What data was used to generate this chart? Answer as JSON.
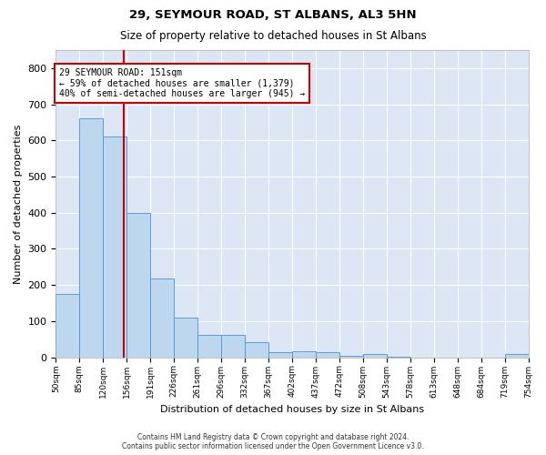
{
  "title1": "29, SEYMOUR ROAD, ST ALBANS, AL3 5HN",
  "title2": "Size of property relative to detached houses in St Albans",
  "xlabel": "Distribution of detached houses by size in St Albans",
  "ylabel": "Number of detached properties",
  "bar_values": [
    175,
    660,
    610,
    400,
    218,
    110,
    63,
    63,
    42,
    15,
    16,
    13,
    5,
    8,
    1,
    0,
    0,
    0,
    0,
    8
  ],
  "bin_labels": [
    "50sqm",
    "85sqm",
    "120sqm",
    "156sqm",
    "191sqm",
    "226sqm",
    "261sqm",
    "296sqm",
    "332sqm",
    "367sqm",
    "402sqm",
    "437sqm",
    "472sqm",
    "508sqm",
    "543sqm",
    "578sqm",
    "613sqm",
    "648sqm",
    "684sqm",
    "719sqm",
    "754sqm"
  ],
  "bar_color": "#bdd7ee",
  "bar_edge_color": "#5b9bd5",
  "vline_color": "#cc0000",
  "annotation_text": "29 SEYMOUR ROAD: 151sqm\n← 59% of detached houses are smaller (1,379)\n40% of semi-detached houses are larger (945) →",
  "annotation_box_color": "#ffffff",
  "annotation_box_edge": "#cc0000",
  "annotation_text_color": "#000000",
  "ylim": [
    0,
    850
  ],
  "yticks": [
    0,
    100,
    200,
    300,
    400,
    500,
    600,
    700,
    800
  ],
  "background_color": "#dce6f5",
  "footer1": "Contains HM Land Registry data © Crown copyright and database right 2024.",
  "footer2": "Contains public sector information licensed under the Open Government Licence v3.0."
}
